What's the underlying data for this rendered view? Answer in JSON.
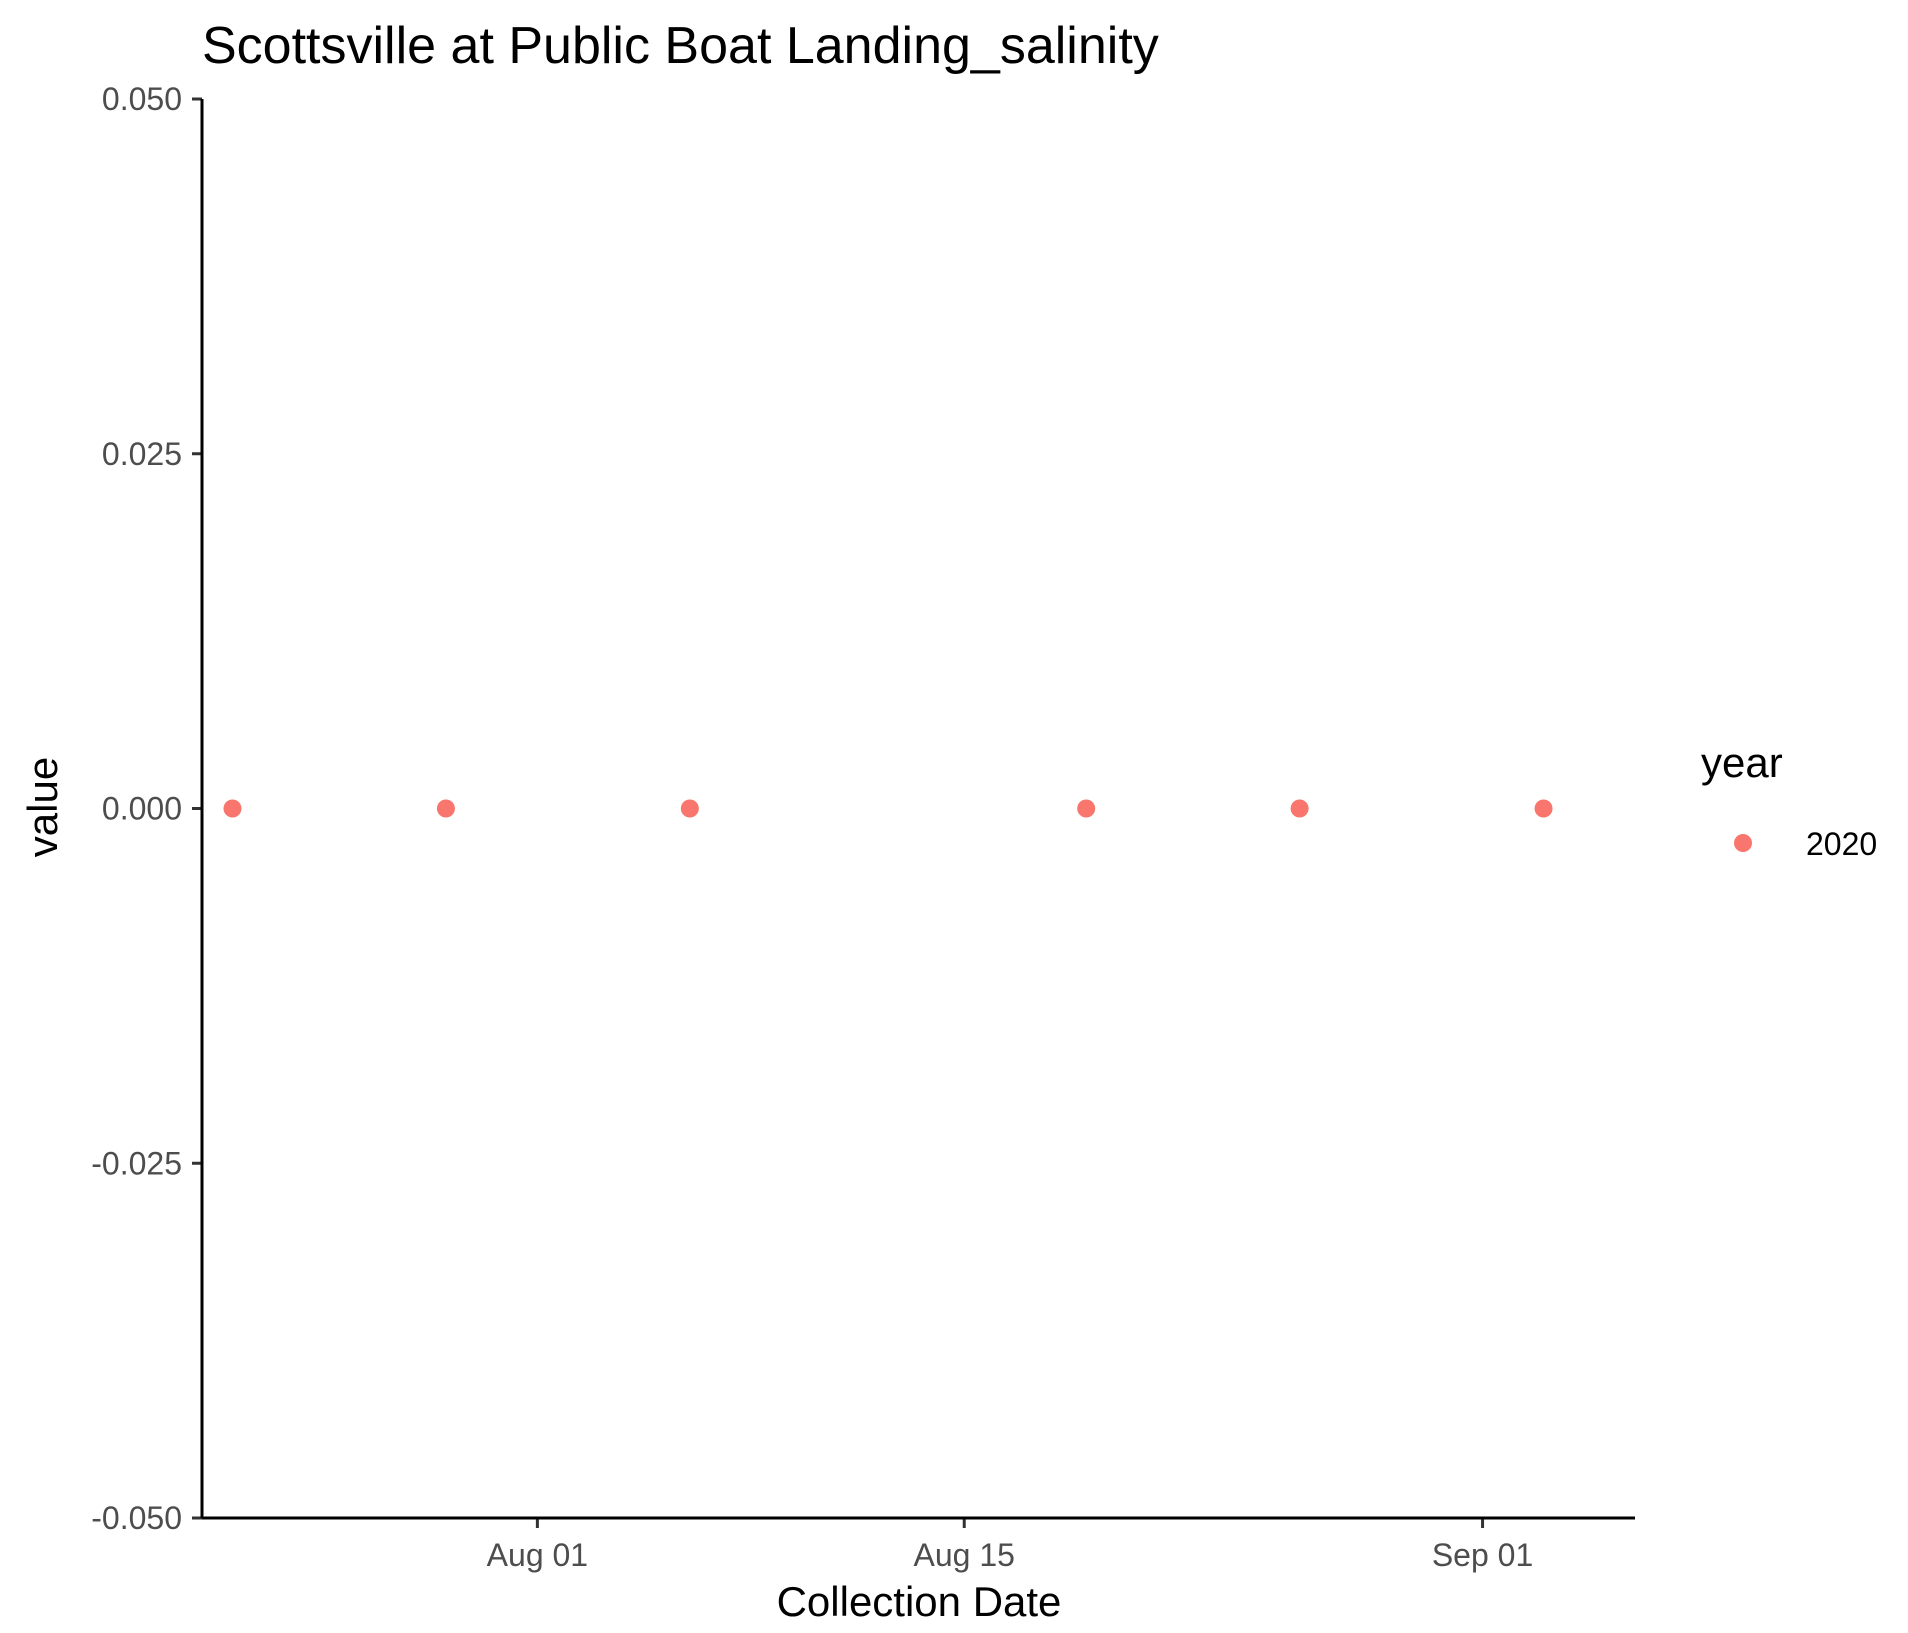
{
  "chart_data": {
    "type": "scatter",
    "title": "Scottsville at Public Boat Landing_salinity",
    "xlabel": "Collection Date",
    "ylabel": "value",
    "x_scale": "date",
    "xlim": [
      "2020-07-21",
      "2020-09-06"
    ],
    "ylim": [
      -0.05,
      0.05
    ],
    "x_ticks": [
      {
        "value": "2020-08-01",
        "label": "Aug 01"
      },
      {
        "value": "2020-08-15",
        "label": "Aug 15"
      },
      {
        "value": "2020-09-01",
        "label": "Sep 01"
      }
    ],
    "y_ticks": [
      {
        "value": -0.05,
        "label": "-0.050"
      },
      {
        "value": -0.025,
        "label": "-0.025"
      },
      {
        "value": 0,
        "label": "0.000"
      },
      {
        "value": 0.025,
        "label": "0.025"
      },
      {
        "value": 0.05,
        "label": "0.050"
      }
    ],
    "grid": false,
    "legend": {
      "title": "year",
      "position": "right",
      "entries": [
        {
          "label": "2020",
          "color": "#F8766D"
        }
      ]
    },
    "series": [
      {
        "name": "2020",
        "color": "#F8766D",
        "points": [
          {
            "x": "2020-07-22",
            "y": 0
          },
          {
            "x": "2020-07-29",
            "y": 0
          },
          {
            "x": "2020-08-06",
            "y": 0
          },
          {
            "x": "2020-08-19",
            "y": 0
          },
          {
            "x": "2020-08-26",
            "y": 0
          },
          {
            "x": "2020-09-03",
            "y": 0
          }
        ]
      }
    ]
  }
}
